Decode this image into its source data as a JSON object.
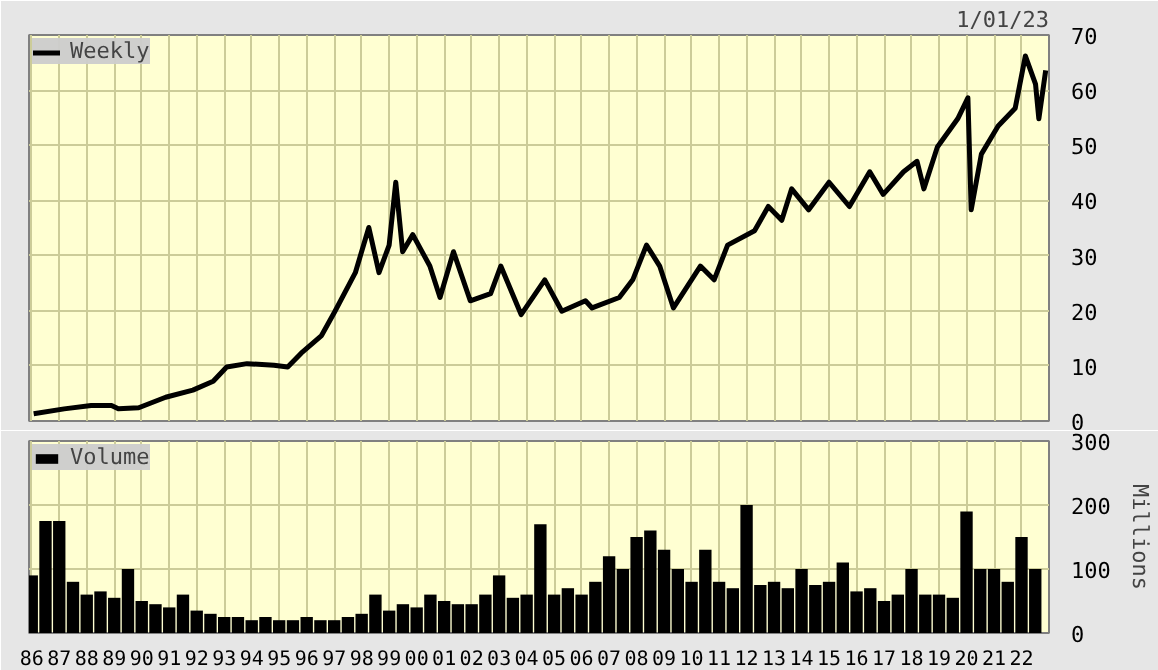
{
  "chart_data": [
    {
      "type": "line",
      "annotations": [
        "1/01/23"
      ],
      "legend": "top left",
      "grid": true,
      "tick_labels": "y",
      "xticks": [
        {
          "value": 1986,
          "label": null
        },
        {
          "value": 1987,
          "label": null
        },
        {
          "value": 1988,
          "label": null
        },
        {
          "value": 1989,
          "label": null
        },
        {
          "value": 1990,
          "label": null
        },
        {
          "value": 1991,
          "label": null
        },
        {
          "value": 1992,
          "label": null
        },
        {
          "value": 1993,
          "label": null
        },
        {
          "value": 1994,
          "label": null
        },
        {
          "value": 1995,
          "label": null
        },
        {
          "value": 1996,
          "label": null
        },
        {
          "value": 1997,
          "label": null
        },
        {
          "value": 1998,
          "label": null
        },
        {
          "value": 1999,
          "label": null
        },
        {
          "value": 2000,
          "label": null
        },
        {
          "value": 2001,
          "label": null
        },
        {
          "value": 2002,
          "label": null
        },
        {
          "value": 2003,
          "label": null
        },
        {
          "value": 2004,
          "label": null
        },
        {
          "value": 2005,
          "label": null
        },
        {
          "value": 2006,
          "label": null
        },
        {
          "value": 2007,
          "label": null
        },
        {
          "value": 2008,
          "label": null
        },
        {
          "value": 2009,
          "label": null
        },
        {
          "value": 2010,
          "label": null
        },
        {
          "value": 2011,
          "label": null
        },
        {
          "value": 2012,
          "label": null
        },
        {
          "value": 2013,
          "label": null
        },
        {
          "value": 2014,
          "label": null
        },
        {
          "value": 2015,
          "label": null
        },
        {
          "value": 2016,
          "label": null
        },
        {
          "value": 2017,
          "label": null
        },
        {
          "value": 2018,
          "label": null
        },
        {
          "value": 2019,
          "label": null
        },
        {
          "value": 2020,
          "label": null
        },
        {
          "value": 2021,
          "label": null
        },
        {
          "value": 2022,
          "label": null
        }
      ],
      "x": [
        1986.07,
        1987.18,
        1988.16,
        1988.9,
        1989.15,
        1989.89,
        1990.87,
        1991.86,
        1992.6,
        1993.09,
        1993.83,
        1994.81,
        1995.31,
        1995.8,
        1996.54,
        1997.03,
        1997.77,
        1998.26,
        1998.63,
        1999.0,
        1999.24,
        1999.49,
        1999.86,
        2000.48,
        2000.85,
        2001.34,
        2001.95,
        2002.69,
        2003.06,
        2003.8,
        2004.66,
        2005.28,
        2006.14,
        2006.38,
        2007.37,
        2007.86,
        2008.36,
        2008.84,
        2009.34,
        2010.32,
        2010.82,
        2011.31,
        2012.29,
        2012.79,
        2013.28,
        2013.64,
        2014.26,
        2015.0,
        2015.74,
        2016.48,
        2016.97,
        2017.71,
        2018.2,
        2018.45,
        2018.94,
        2019.68,
        2020.05,
        2020.17,
        2020.54,
        2021.15,
        2021.77,
        2022.14,
        2022.51,
        2022.63,
        2022.88
      ],
      "series": [
        {
          "name": "Weekly",
          "color": "#000000",
          "values": [
            1.3,
            2.2,
            2.8,
            2.8,
            2.2,
            2.4,
            4.3,
            5.6,
            7.2,
            9.8,
            10.4,
            10.1,
            9.8,
            12.3,
            15.5,
            19.9,
            26.9,
            35.1,
            26.9,
            31.9,
            43.3,
            30.7,
            33.8,
            28.1,
            22.4,
            30.7,
            21.8,
            23.1,
            28.1,
            19.3,
            25.6,
            19.9,
            21.8,
            20.5,
            22.4,
            25.6,
            31.9,
            28.1,
            20.5,
            28.1,
            25.6,
            31.9,
            34.5,
            38.9,
            36.4,
            42.1,
            38.3,
            43.3,
            38.9,
            45.2,
            41.1,
            45.2,
            47.1,
            42.1,
            49.7,
            54.8,
            58.6,
            38.3,
            48.4,
            53.5,
            56.7,
            66.2,
            61.1,
            54.8,
            63.6
          ]
        }
      ],
      "xlim": [
        1985.9,
        2023.0
      ],
      "ylim": [
        0,
        70
      ],
      "yticks": [
        0,
        10,
        20,
        30,
        40,
        50,
        60,
        70
      ]
    },
    {
      "type": "bar",
      "ylabel": "Millions",
      "legend": "top left",
      "grid": true,
      "x": [
        1986.0,
        1986.5,
        1987.0,
        1987.5,
        1988.0,
        1988.5,
        1989.0,
        1989.5,
        1990.0,
        1990.5,
        1991.0,
        1991.5,
        1992.0,
        1992.5,
        1993.0,
        1993.5,
        1994.0,
        1994.5,
        1995.0,
        1995.5,
        1996.0,
        1996.5,
        1997.0,
        1997.5,
        1998.0,
        1998.5,
        1999.0,
        1999.5,
        2000.0,
        2000.5,
        2001.0,
        2001.5,
        2002.0,
        2002.5,
        2003.0,
        2003.5,
        2004.0,
        2004.5,
        2005.0,
        2005.5,
        2006.0,
        2006.5,
        2007.0,
        2007.5,
        2008.0,
        2008.5,
        2009.0,
        2009.5,
        2010.0,
        2010.5,
        2011.0,
        2011.5,
        2012.0,
        2012.5,
        2013.0,
        2013.5,
        2014.0,
        2014.5,
        2015.0,
        2015.5,
        2016.0,
        2016.5,
        2017.0,
        2017.5,
        2018.0,
        2018.5,
        2019.0,
        2019.5,
        2020.0,
        2020.5,
        2021.0,
        2021.5,
        2022.0,
        2022.5
      ],
      "series": [
        {
          "name": "Volume",
          "color": "#000000",
          "values": [
            90,
            175,
            175,
            80,
            60,
            65,
            55,
            100,
            50,
            45,
            40,
            60,
            35,
            30,
            25,
            25,
            20,
            25,
            20,
            20,
            25,
            20,
            20,
            25,
            30,
            60,
            35,
            45,
            40,
            60,
            50,
            45,
            45,
            60,
            90,
            55,
            60,
            170,
            60,
            70,
            60,
            80,
            120,
            100,
            150,
            160,
            130,
            100,
            80,
            130,
            80,
            70,
            200,
            75,
            80,
            70,
            100,
            75,
            80,
            110,
            65,
            70,
            50,
            60,
            100,
            60,
            60,
            55,
            190,
            100,
            100,
            80,
            150,
            100
          ]
        }
      ],
      "xlim": [
        1985.9,
        2023.0
      ],
      "xticks": [
        {
          "value": 1986,
          "label": "86"
        },
        {
          "value": 1987,
          "label": "87"
        },
        {
          "value": 1988,
          "label": "88"
        },
        {
          "value": 1989,
          "label": "89"
        },
        {
          "value": 1990,
          "label": "90"
        },
        {
          "value": 1991,
          "label": "91"
        },
        {
          "value": 1992,
          "label": "92"
        },
        {
          "value": 1993,
          "label": "93"
        },
        {
          "value": 1994,
          "label": "94"
        },
        {
          "value": 1995,
          "label": "95"
        },
        {
          "value": 1996,
          "label": "96"
        },
        {
          "value": 1997,
          "label": "97"
        },
        {
          "value": 1998,
          "label": "98"
        },
        {
          "value": 1999,
          "label": "99"
        },
        {
          "value": 2000,
          "label": "00"
        },
        {
          "value": 2001,
          "label": "01"
        },
        {
          "value": 2002,
          "label": "02"
        },
        {
          "value": 2003,
          "label": "03"
        },
        {
          "value": 2004,
          "label": "04"
        },
        {
          "value": 2005,
          "label": "05"
        },
        {
          "value": 2006,
          "label": "06"
        },
        {
          "value": 2007,
          "label": "07"
        },
        {
          "value": 2008,
          "label": "08"
        },
        {
          "value": 2009,
          "label": "09"
        },
        {
          "value": 2010,
          "label": "10"
        },
        {
          "value": 2011,
          "label": "11"
        },
        {
          "value": 2012,
          "label": "12"
        },
        {
          "value": 2013,
          "label": "13"
        },
        {
          "value": 2014,
          "label": "14"
        },
        {
          "value": 2015,
          "label": "15"
        },
        {
          "value": 2016,
          "label": "16"
        },
        {
          "value": 2017,
          "label": "17"
        },
        {
          "value": 2018,
          "label": "18"
        },
        {
          "value": 2019,
          "label": "19"
        },
        {
          "value": 2020,
          "label": "20"
        },
        {
          "value": 2021,
          "label": "21"
        },
        {
          "value": 2022,
          "label": "22"
        }
      ],
      "ylim": [
        0,
        300
      ],
      "yticks": [
        0,
        100,
        200,
        300
      ]
    }
  ]
}
